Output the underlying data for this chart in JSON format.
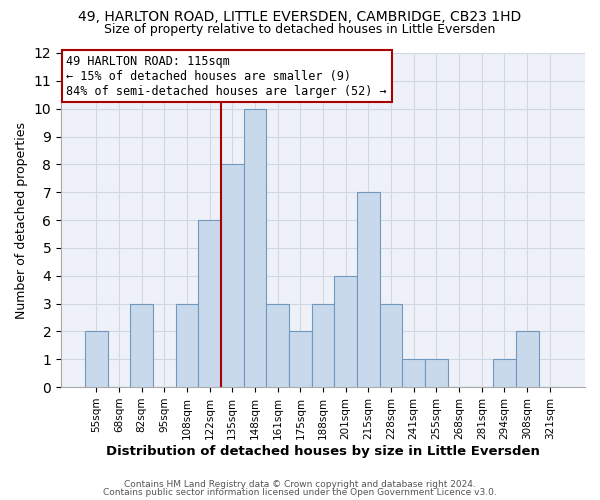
{
  "title": "49, HARLTON ROAD, LITTLE EVERSDEN, CAMBRIDGE, CB23 1HD",
  "subtitle": "Size of property relative to detached houses in Little Eversden",
  "xlabel": "Distribution of detached houses by size in Little Eversden",
  "ylabel": "Number of detached properties",
  "bar_labels": [
    "55sqm",
    "68sqm",
    "82sqm",
    "95sqm",
    "108sqm",
    "122sqm",
    "135sqm",
    "148sqm",
    "161sqm",
    "175sqm",
    "188sqm",
    "201sqm",
    "215sqm",
    "228sqm",
    "241sqm",
    "255sqm",
    "268sqm",
    "281sqm",
    "294sqm",
    "308sqm",
    "321sqm"
  ],
  "bar_values": [
    2,
    0,
    3,
    0,
    3,
    6,
    8,
    10,
    3,
    2,
    3,
    4,
    7,
    3,
    1,
    1,
    0,
    0,
    1,
    2,
    0
  ],
  "bar_color": "#c9d9ec",
  "bar_edge_color": "#7098bc",
  "ylim": [
    0,
    12
  ],
  "yticks": [
    0,
    1,
    2,
    3,
    4,
    5,
    6,
    7,
    8,
    9,
    10,
    11,
    12
  ],
  "property_line_x": 5.5,
  "annotation_title": "49 HARLTON ROAD: 115sqm",
  "annotation_line1": "← 15% of detached houses are smaller (9)",
  "annotation_line2": "84% of semi-detached houses are larger (52) →",
  "annotation_box_color": "#ffffff",
  "annotation_box_edge": "#aa0000",
  "property_line_color": "#aa0000",
  "grid_color": "#d0d8e4",
  "footer1": "Contains HM Land Registry data © Crown copyright and database right 2024.",
  "footer2": "Contains public sector information licensed under the Open Government Licence v3.0.",
  "background_color": "#ffffff",
  "plot_bg_color": "#eef2f8"
}
